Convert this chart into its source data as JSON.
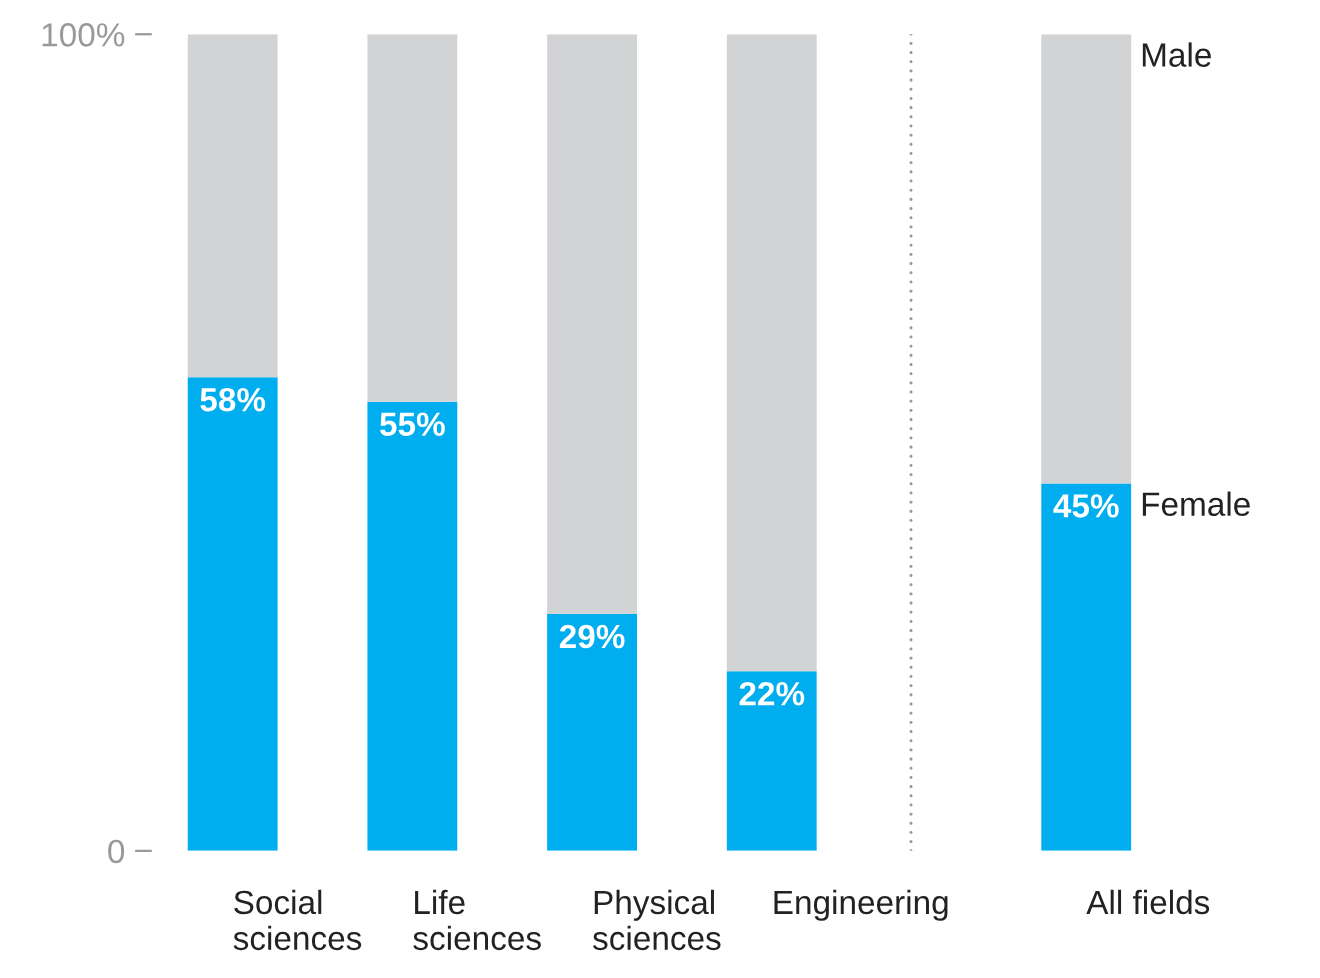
{
  "chart_data": {
    "type": "bar",
    "stacked": true,
    "categories": [
      "Social\nsciences",
      "Life\nsciences",
      "Physical\nsciences",
      "Engineering",
      "All fields"
    ],
    "series": [
      {
        "name": "Female",
        "color": "#00aeef",
        "values": [
          58,
          55,
          29,
          22,
          45
        ],
        "value_labels": [
          "58%",
          "55%",
          "29%",
          "22%",
          "45%"
        ]
      },
      {
        "name": "Male",
        "color": "#d1d3d4",
        "values": [
          42,
          45,
          71,
          78,
          55
        ]
      }
    ],
    "ylim": [
      0,
      100
    ],
    "yticks": [
      0,
      {
        "value": 100,
        "label": "100%"
      }
    ],
    "grid": false,
    "legend": false
  }
}
